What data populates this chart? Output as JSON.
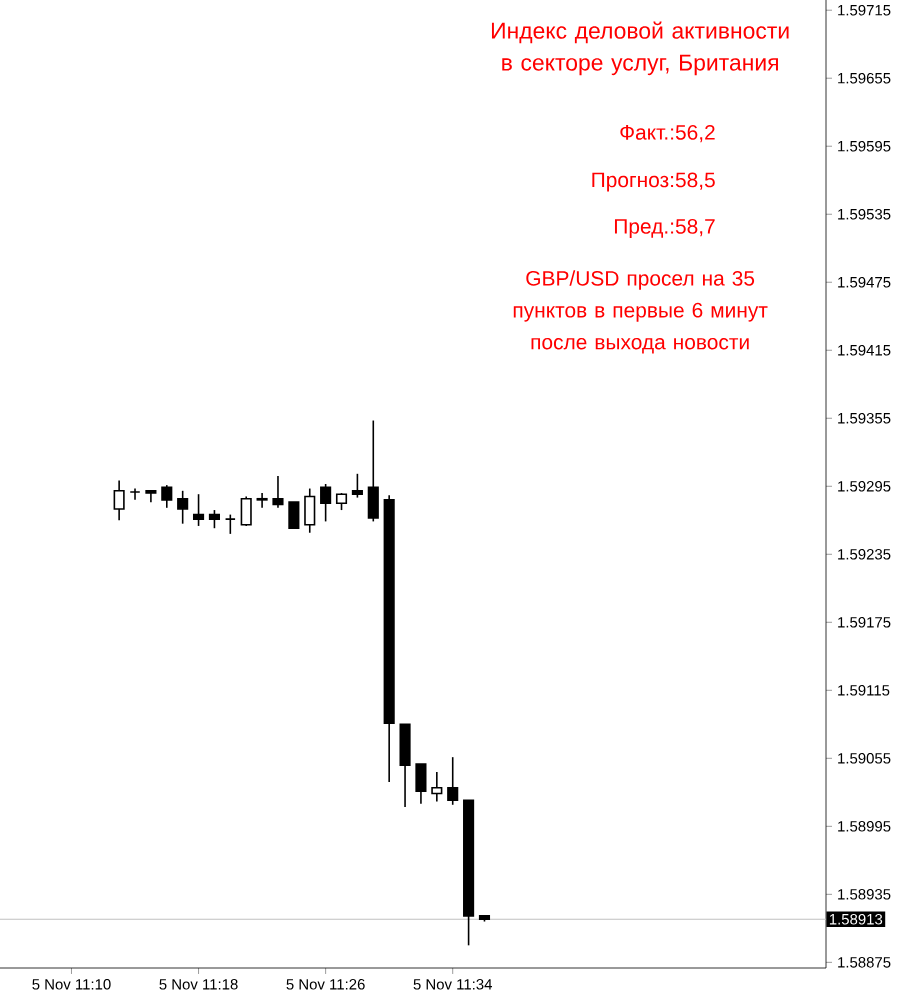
{
  "chart_data": {
    "type": "candlestick",
    "title": "Индекс деловой активности в секторе услуг, Британия",
    "annotations": [
      "Факт.:56,2",
      "Прогноз:58,5",
      "Пред.:58,7",
      "GBP/USD просел на 35 пунктов в первые 6 минут после выхода новости"
    ],
    "categories": [
      null,
      null,
      null,
      null,
      "5 Nov 11:10",
      null,
      null,
      null,
      null,
      null,
      null,
      null,
      "5 Nov 11:18",
      null,
      null,
      null,
      null,
      null,
      null,
      null,
      "5 Nov 11:26",
      null,
      null,
      null,
      null,
      null,
      null,
      null,
      "5 Nov 11:34",
      null,
      null,
      null,
      null,
      null,
      null,
      null,
      null,
      null,
      null,
      null,
      null,
      null,
      null,
      null,
      null,
      null,
      null,
      null,
      null,
      null,
      null,
      null
    ],
    "ohlc": [
      null,
      null,
      null,
      null,
      null,
      null,
      null,
      [
        1.59275,
        1.593,
        1.59265,
        1.59291
      ],
      [
        1.5929,
        1.59293,
        1.59283,
        1.5929
      ],
      [
        1.59291,
        1.59291,
        1.59281,
        1.59289
      ],
      [
        1.59294,
        1.59296,
        1.59276,
        1.59283
      ],
      [
        1.59284,
        1.59291,
        1.59262,
        1.59275
      ],
      [
        1.5927,
        1.59288,
        1.5926,
        1.59266
      ],
      [
        1.5927,
        1.59274,
        1.59258,
        1.59266
      ],
      [
        1.59266,
        1.5927,
        1.59253,
        1.59266
      ],
      [
        1.59261,
        1.59286,
        1.5926,
        1.59284
      ],
      [
        1.59284,
        1.59289,
        1.59276,
        1.59283
      ],
      [
        1.59284,
        1.59304,
        1.59276,
        1.59279
      ],
      [
        1.59281,
        1.59281,
        1.59258,
        1.59258
      ],
      [
        1.59261,
        1.59293,
        1.59254,
        1.59286
      ],
      [
        1.59294,
        1.59297,
        1.59264,
        1.5928
      ],
      [
        1.5928,
        1.59289,
        1.59274,
        1.59288
      ],
      [
        1.59291,
        1.59306,
        1.59285,
        1.59288
      ],
      [
        1.59294,
        1.59353,
        1.59264,
        1.59267
      ],
      [
        1.59283,
        1.59287,
        1.59034,
        1.59086
      ],
      [
        1.59085,
        1.59085,
        1.59012,
        1.59049
      ],
      [
        1.5905,
        1.5905,
        1.59015,
        1.59026
      ],
      [
        1.59024,
        1.59043,
        1.59017,
        1.59029
      ],
      [
        1.59029,
        1.59056,
        1.59014,
        1.59018
      ],
      [
        1.59018,
        1.59018,
        1.5889,
        1.58916
      ],
      [
        1.58916,
        1.58916,
        1.58911,
        1.58913
      ],
      null,
      null,
      null,
      null,
      null,
      null,
      null,
      null,
      null,
      null,
      null,
      null,
      null,
      null,
      null,
      null,
      null,
      null,
      null,
      null,
      null
    ],
    "ylim": [
      1.5887,
      1.59724
    ],
    "yticks": [
      1.58875,
      1.58935,
      1.58995,
      1.59055,
      1.59115,
      1.59175,
      1.59235,
      1.59295,
      1.59355,
      1.59415,
      1.59475,
      1.59535,
      1.59595,
      1.59655,
      1.59715
    ],
    "ref_lines": [
      {
        "axis": "y",
        "value": 1.58913,
        "label": "1.58913",
        "color": "#c0c0c0"
      }
    ],
    "grid": false
  }
}
